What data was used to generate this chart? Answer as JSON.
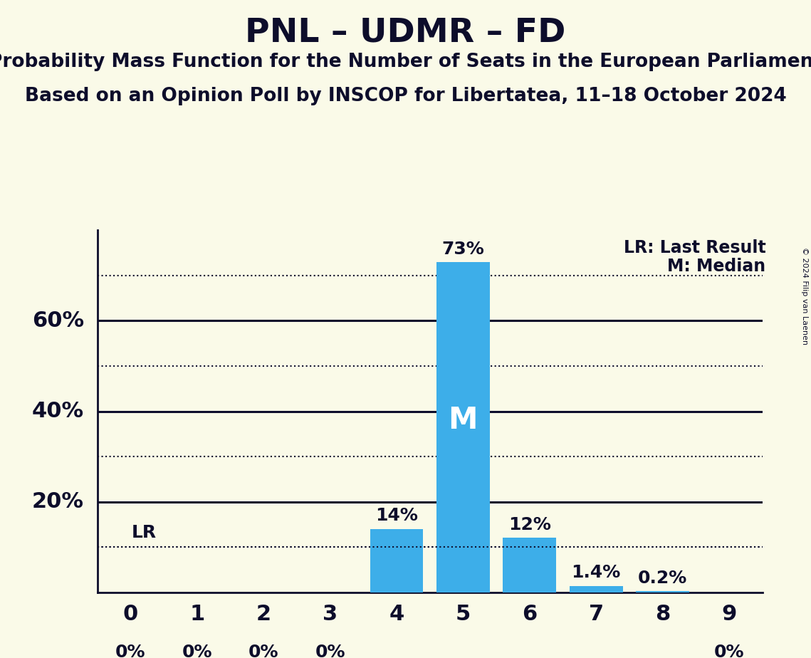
{
  "title": "PNL – UDMR – FD",
  "subtitle1": "Probability Mass Function for the Number of Seats in the European Parliament",
  "subtitle2": "Based on an Opinion Poll by INSCOP for Libertatea, 11–18 October 2024",
  "copyright": "© 2024 Filip van Laenen",
  "bar_color": "#3daee9",
  "background_color": "#fafae8",
  "categories": [
    0,
    1,
    2,
    3,
    4,
    5,
    6,
    7,
    8,
    9
  ],
  "values": [
    0.0,
    0.0,
    0.0,
    0.0,
    0.14,
    0.73,
    0.12,
    0.014,
    0.002,
    0.0
  ],
  "labels": [
    "0%",
    "0%",
    "0%",
    "0%",
    "14%",
    "73%",
    "12%",
    "1.4%",
    "0.2%",
    "0%"
  ],
  "median": 5,
  "lr_value": 0.1,
  "ylim": [
    0,
    0.8
  ],
  "dotted_lines": [
    0.1,
    0.3,
    0.5,
    0.7
  ],
  "solid_lines": [
    0.2,
    0.4,
    0.6
  ],
  "ytick_positions": [
    0.2,
    0.4,
    0.6
  ],
  "ytick_labels": [
    "20%",
    "40%",
    "60%"
  ],
  "legend_lr": "LR: Last Result",
  "legend_m": "M: Median",
  "title_fontsize": 34,
  "subtitle_fontsize": 19,
  "label_fontsize": 18,
  "tick_fontsize": 22,
  "legend_fontsize": 17,
  "ylabel_fontsize": 22,
  "m_fontsize": 30,
  "lr_fontsize": 18
}
